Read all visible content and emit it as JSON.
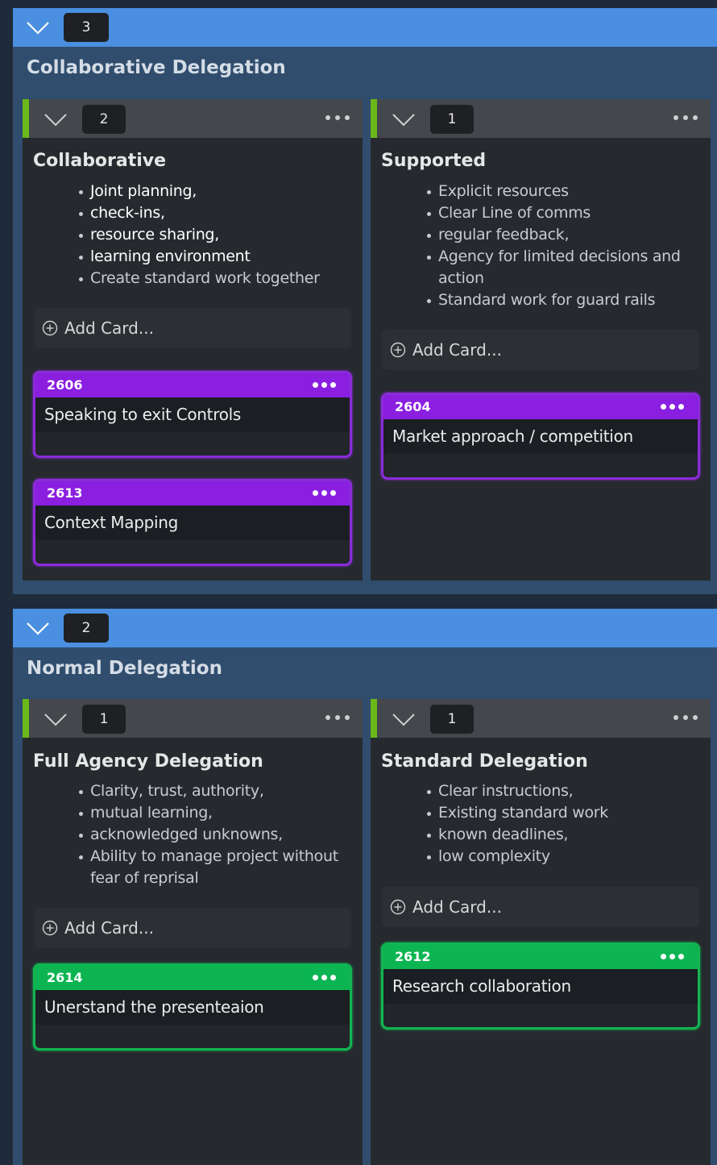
{
  "lanes": [
    {
      "count": "3",
      "title": "Collaborative Delegation",
      "columns": [
        {
          "count": "2",
          "title": "Collaborative",
          "bullets": [
            "Joint planning,",
            "check-ins,",
            "resource sharing,",
            "learning environment",
            "Create standard work together"
          ],
          "add_card_label": "Add Card...",
          "cards": [
            {
              "id": "2606",
              "text": "Speaking to exit Controls"
            },
            {
              "id": "2613",
              "text": "Context Mapping"
            }
          ]
        },
        {
          "count": "1",
          "title": "Supported",
          "bullets": [
            "Explicit resources",
            "Clear Line of comms",
            "regular feedback,",
            "Agency for limited decisions and",
            "action",
            "Standard work for guard rails"
          ],
          "add_card_label": "Add Card...",
          "cards": [
            {
              "id": "2604",
              "text": "Market approach / competition"
            }
          ]
        }
      ]
    },
    {
      "count": "2",
      "title": "Normal Delegation",
      "columns": [
        {
          "count": "1",
          "title": "Full Agency Delegation",
          "bullets": [
            "Clarity, trust, authority,",
            "mutual learning,",
            "acknowledged unknowns,",
            "Ability to manage project without",
            "fear of reprisal"
          ],
          "add_card_label": "Add Card...",
          "cards": [
            {
              "id": "2614",
              "text": "Unerstand the presenteaion"
            }
          ]
        },
        {
          "count": "1",
          "title": "Standard Delegation",
          "bullets": [
            "Clear instructions,",
            "Existing standard work",
            "known deadlines,",
            "low complexity"
          ],
          "add_card_label": "Add Card...",
          "cards": [
            {
              "id": "2612",
              "text": "Research collaboration"
            }
          ]
        }
      ]
    }
  ],
  "colors": {
    "lane_header": "#4a8fe0",
    "lane_body": "#304d6d",
    "column_accent": "#6ab81a",
    "card_purple": "#8a1fe0",
    "card_green": "#0cb552"
  },
  "icons": {
    "collapse": "chevron-down-icon",
    "menu": "more-horizontal-icon",
    "add": "plus-circle-icon"
  }
}
